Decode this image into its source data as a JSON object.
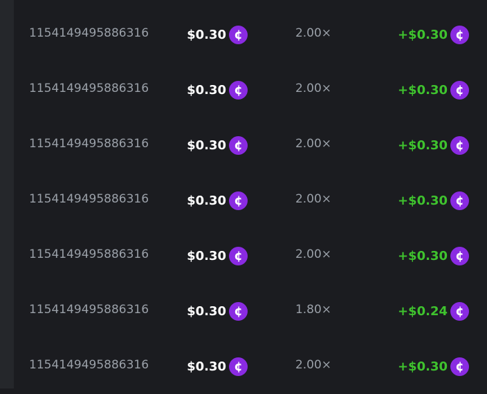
{
  "colors": {
    "coin": "#8a2be2",
    "profit": "#3fc32e",
    "background": "#1b1c20"
  },
  "coin_icon": "cent-coin-icon",
  "rows": [
    {
      "id": "1154149495886316",
      "amount": "$0.30",
      "multiplier": "2.00×",
      "profit": "+$0.30"
    },
    {
      "id": "1154149495886316",
      "amount": "$0.30",
      "multiplier": "2.00×",
      "profit": "+$0.30"
    },
    {
      "id": "1154149495886316",
      "amount": "$0.30",
      "multiplier": "2.00×",
      "profit": "+$0.30"
    },
    {
      "id": "1154149495886316",
      "amount": "$0.30",
      "multiplier": "2.00×",
      "profit": "+$0.30"
    },
    {
      "id": "1154149495886316",
      "amount": "$0.30",
      "multiplier": "2.00×",
      "profit": "+$0.30"
    },
    {
      "id": "1154149495886316",
      "amount": "$0.30",
      "multiplier": "1.80×",
      "profit": "+$0.24"
    },
    {
      "id": "1154149495886316",
      "amount": "$0.30",
      "multiplier": "2.00×",
      "profit": "+$0.30"
    }
  ]
}
